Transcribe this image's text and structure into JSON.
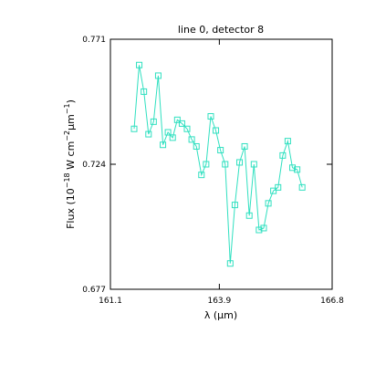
{
  "chart_data": {
    "type": "line",
    "title": "line 0, detector 8",
    "xlabel": "λ (μm)",
    "ylabel_parts": [
      "Flux (10",
      "−18",
      " W cm",
      "−2",
      "μm",
      "−1",
      ")"
    ],
    "xlim": [
      161.1,
      166.8
    ],
    "ylim": [
      0.677,
      0.771
    ],
    "xticks": [
      161.1,
      163.9,
      166.8
    ],
    "xtick_labels": [
      "161.1",
      "163.9",
      "166.8"
    ],
    "yticks": [
      0.677,
      0.724,
      0.771
    ],
    "ytick_labels": [
      "0.677",
      "0.724",
      "0.771"
    ],
    "series": [
      {
        "color": "#30e0c0",
        "marker": "square",
        "x": [
          161.71,
          161.84,
          161.96,
          162.08,
          162.21,
          162.33,
          162.45,
          162.58,
          162.7,
          162.82,
          162.94,
          163.07,
          163.19,
          163.31,
          163.44,
          163.56,
          163.68,
          163.81,
          163.93,
          164.05,
          164.18,
          164.3,
          164.42,
          164.55,
          164.67,
          164.79,
          164.92,
          165.04,
          165.16,
          165.29,
          165.41,
          165.53,
          165.66,
          165.78,
          165.9,
          166.03
        ],
        "y": [
          0.7373,
          0.7613,
          0.7513,
          0.7353,
          0.74,
          0.7573,
          0.7313,
          0.736,
          0.734,
          0.7407,
          0.7393,
          0.7373,
          0.7333,
          0.7307,
          0.72,
          0.724,
          0.742,
          0.7367,
          0.7293,
          0.724,
          0.6867,
          0.7087,
          0.7247,
          0.7307,
          0.7047,
          0.724,
          0.6993,
          0.7,
          0.7093,
          0.714,
          0.7153,
          0.7273,
          0.7327,
          0.7227,
          0.722,
          0.7153
        ]
      }
    ]
  }
}
